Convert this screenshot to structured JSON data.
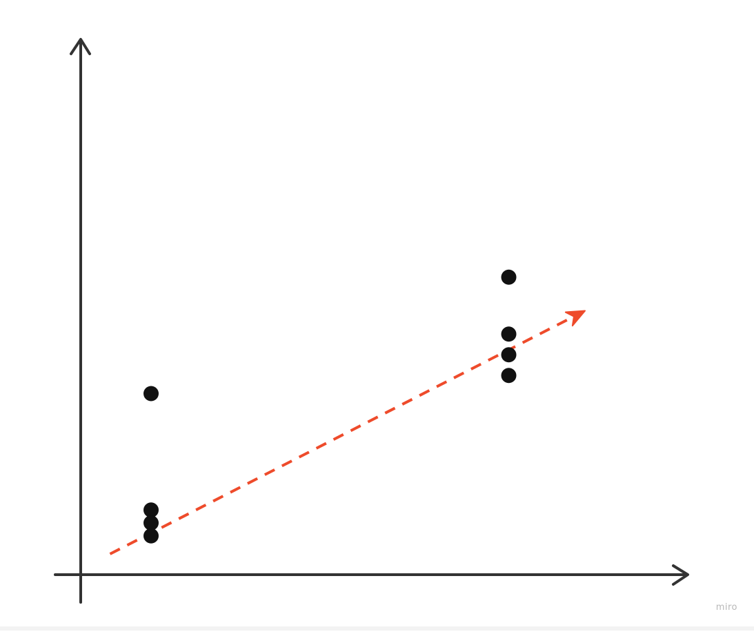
{
  "watermark": {
    "text": "miro"
  },
  "colors": {
    "axis": "#333333",
    "point": "#111111",
    "trend": "#ee4b2b",
    "background": "#ffffff"
  },
  "chart_data": {
    "type": "scatter",
    "title": "",
    "xlabel": "",
    "ylabel": "",
    "grid": false,
    "axis_ticks": false,
    "xlim": [
      0,
      10
    ],
    "ylim": [
      0,
      10
    ],
    "series": [
      {
        "points": [
          {
            "x": 1.2,
            "y": 3.5
          },
          {
            "x": 1.2,
            "y": 1.25
          },
          {
            "x": 1.2,
            "y": 1.0
          },
          {
            "x": 1.2,
            "y": 0.75
          },
          {
            "x": 7.3,
            "y": 5.75
          },
          {
            "x": 7.3,
            "y": 4.65
          },
          {
            "x": 7.3,
            "y": 4.25
          },
          {
            "x": 7.3,
            "y": 3.85
          }
        ]
      }
    ],
    "trend_line": {
      "style": "dashed",
      "arrow": true,
      "from": {
        "x": 0.5,
        "y": 0.4
      },
      "to": {
        "x": 8.6,
        "y": 5.1
      }
    }
  }
}
